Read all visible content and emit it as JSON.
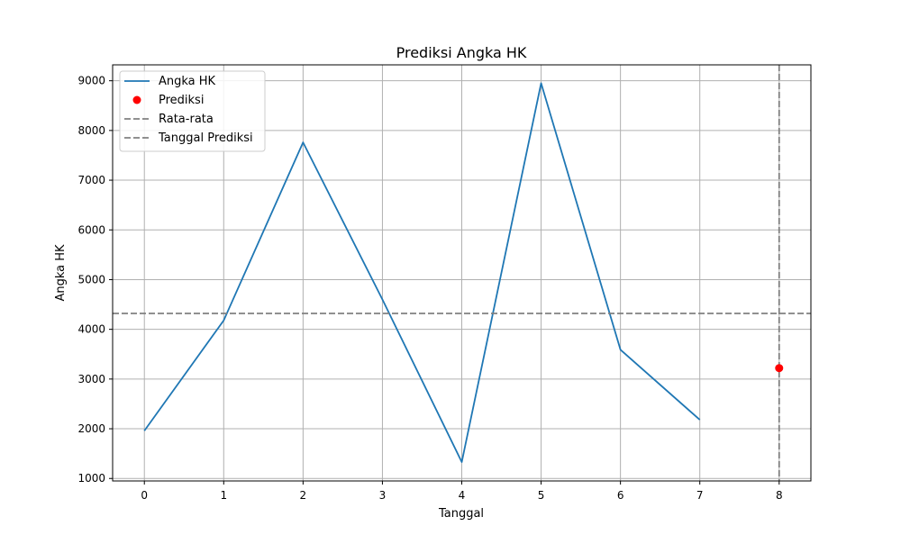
{
  "chart_data": {
    "type": "line",
    "title": "Prediksi Angka HK",
    "xlabel": "Tanggal",
    "ylabel": "Angka HK",
    "xlim": [
      -0.4,
      8.4
    ],
    "ylim": [
      950,
      9320
    ],
    "xticks": [
      0,
      1,
      2,
      3,
      4,
      5,
      6,
      7,
      8
    ],
    "yticks": [
      1000,
      2000,
      3000,
      4000,
      5000,
      6000,
      7000,
      8000,
      9000
    ],
    "grid": true,
    "legend_position": "upper-left",
    "series": [
      {
        "name": "Angka HK",
        "kind": "line",
        "color": "#1f77b4",
        "x": [
          0,
          1,
          2,
          3,
          4,
          5,
          6,
          7
        ],
        "y": [
          1960,
          4180,
          7760,
          4600,
          1330,
          8950,
          3590,
          2180
        ]
      },
      {
        "name": "Prediksi",
        "kind": "scatter",
        "color": "#ff0000",
        "x": [
          8
        ],
        "y": [
          3220
        ]
      },
      {
        "name": "Rata-rata",
        "kind": "hline",
        "color": "#808080",
        "style": "dashed",
        "y": 4320
      },
      {
        "name": "Tanggal Prediksi",
        "kind": "vline",
        "color": "#808080",
        "style": "dashed",
        "x": 8
      }
    ]
  }
}
